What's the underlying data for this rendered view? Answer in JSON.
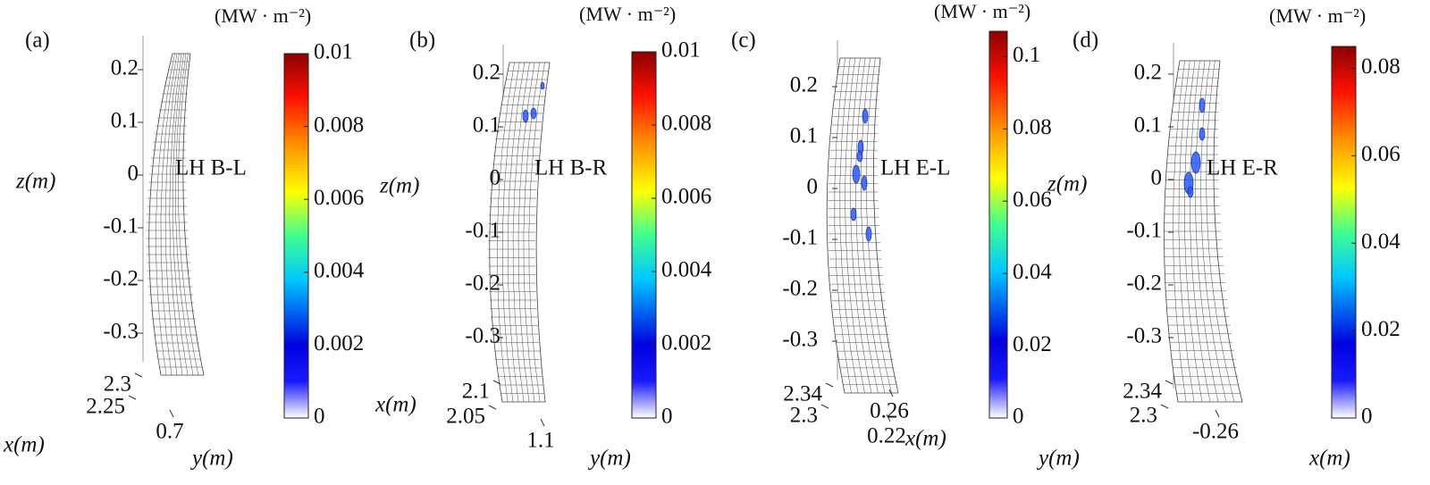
{
  "chart_data": [
    {
      "type": "surface",
      "panel_label": "(a)",
      "annotation": "LH B-L",
      "colorbar_title": "(MW · m⁻²)",
      "clim": [
        0,
        0.01
      ],
      "cticks": [
        0,
        0.002,
        0.004,
        0.006,
        0.008,
        0.01
      ],
      "zlabel": "z(m)",
      "zticks": [
        0.2,
        0.1,
        0,
        -0.1,
        -0.2,
        -0.3
      ],
      "xlabel": "x(m)",
      "xticks": [
        2.3,
        2.25
      ],
      "ylabel": "y(m)",
      "yticks": [
        0.7
      ]
    },
    {
      "type": "surface",
      "panel_label": "(b)",
      "annotation": "LH B-R",
      "colorbar_title": "(MW · m⁻²)",
      "clim": [
        0,
        0.01
      ],
      "cticks": [
        0,
        0.002,
        0.004,
        0.006,
        0.008,
        0.01
      ],
      "zlabel": "z(m)",
      "zticks": [
        0.2,
        0.1,
        0,
        -0.1,
        -0.2,
        -0.3
      ],
      "xlabel": "x(m)",
      "xticks": [
        2.1,
        2.05
      ],
      "ylabel": "y(m)",
      "yticks": [
        1.1
      ]
    },
    {
      "type": "surface",
      "panel_label": "(c)",
      "annotation": "LH E-L",
      "colorbar_title": "(MW · m⁻²)",
      "clim": [
        0,
        0.107
      ],
      "cticks": [
        0,
        0.02,
        0.04,
        0.06,
        0.08,
        0.1
      ],
      "zticks": [
        0.2,
        0.1,
        0,
        -0.1,
        -0.2,
        -0.3
      ],
      "xlabel": "x(m)",
      "xticks": [
        2.34,
        2.3
      ],
      "ylabel": "y(m)",
      "yticks": [
        0.26,
        0.22
      ]
    },
    {
      "type": "surface",
      "panel_label": "(d)",
      "annotation": "LH E-R",
      "colorbar_title": "(MW · m⁻²)",
      "clim": [
        0,
        0.085
      ],
      "cticks": [
        0,
        0.02,
        0.04,
        0.06,
        0.08
      ],
      "zlabel": "z(m)",
      "zticks": [
        0.2,
        0.1,
        0,
        -0.1,
        -0.2,
        -0.3
      ],
      "xlabel": "x(m)",
      "xticks": [
        2.34,
        2.3
      ],
      "ylabel": "y(m)",
      "yticks": [
        -0.26
      ]
    }
  ]
}
